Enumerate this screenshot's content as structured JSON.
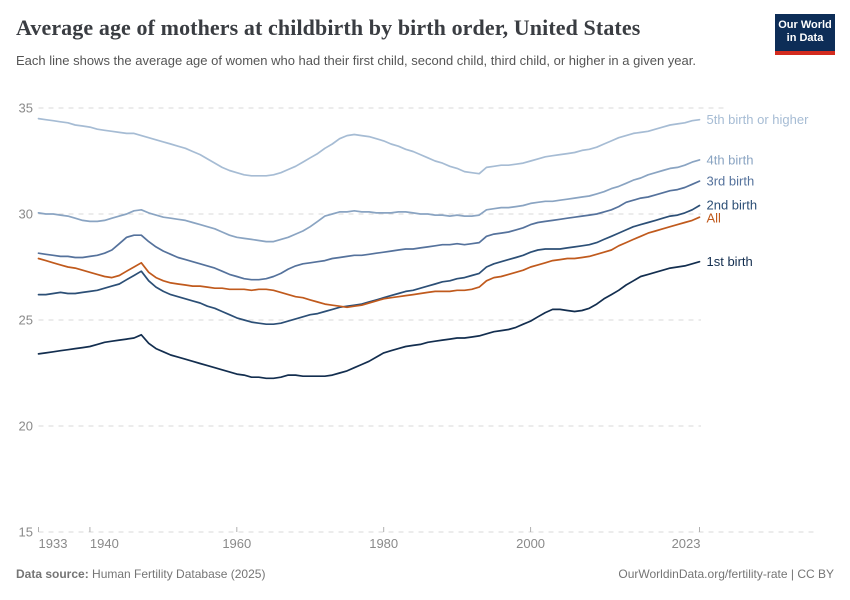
{
  "header": {
    "title": "Average age of mothers at childbirth by birth order, United States",
    "subtitle": "Each line shows the average age of women who had their first child, second child, third child, or higher in a given year.",
    "logo": {
      "line1": "Our World",
      "line2": "in Data",
      "bg_color": "#0d2d57",
      "bar_color": "#d32b1e"
    }
  },
  "footer": {
    "source_label": "Data source:",
    "source_text": " Human Fertility Database (2025)",
    "credit_text": "OurWorldinData.org/fertility-rate | CC BY"
  },
  "style": {
    "title_color": "#3a3d42",
    "subtitle_color": "#555555",
    "footer_color": "#757575",
    "grid_color": "#d9d9d9",
    "axis_text_color": "#8a8a8a",
    "tick_color": "#b0b0b0"
  },
  "chart_data": {
    "type": "line",
    "title": "Average age of mothers at childbirth by birth order, United States",
    "xlabel": "",
    "ylabel": "",
    "xlim": [
      1933,
      2023
    ],
    "ylim": [
      15,
      35
    ],
    "xticks": [
      1933,
      1940,
      1960,
      1980,
      2000,
      2023
    ],
    "yticks": [
      15,
      20,
      25,
      30,
      35
    ],
    "grid": "horizontal-dashed",
    "legend_position": "right-of-line-ends",
    "x": [
      1933,
      1934,
      1935,
      1936,
      1937,
      1938,
      1939,
      1940,
      1941,
      1942,
      1943,
      1944,
      1945,
      1946,
      1947,
      1948,
      1949,
      1950,
      1951,
      1952,
      1953,
      1954,
      1955,
      1956,
      1957,
      1958,
      1959,
      1960,
      1961,
      1962,
      1963,
      1964,
      1965,
      1966,
      1967,
      1968,
      1969,
      1970,
      1971,
      1972,
      1973,
      1974,
      1975,
      1976,
      1977,
      1978,
      1979,
      1980,
      1981,
      1982,
      1983,
      1984,
      1985,
      1986,
      1987,
      1988,
      1989,
      1990,
      1991,
      1992,
      1993,
      1994,
      1995,
      1996,
      1997,
      1998,
      1999,
      2000,
      2001,
      2002,
      2003,
      2004,
      2005,
      2006,
      2007,
      2008,
      2009,
      2010,
      2011,
      2012,
      2013,
      2014,
      2015,
      2016,
      2017,
      2018,
      2019,
      2020,
      2021,
      2022,
      2023
    ],
    "series": [
      {
        "name": "5th birth or higher",
        "color": "#a6bcd4",
        "values": [
          34.5,
          34.45,
          34.4,
          34.35,
          34.3,
          34.2,
          34.15,
          34.1,
          34.0,
          33.95,
          33.9,
          33.85,
          33.8,
          33.8,
          33.7,
          33.6,
          33.5,
          33.4,
          33.3,
          33.2,
          33.1,
          32.95,
          32.8,
          32.6,
          32.4,
          32.2,
          32.05,
          31.95,
          31.85,
          31.8,
          31.8,
          31.8,
          31.85,
          31.95,
          32.1,
          32.25,
          32.45,
          32.65,
          32.85,
          33.1,
          33.3,
          33.55,
          33.7,
          33.75,
          33.7,
          33.65,
          33.55,
          33.45,
          33.3,
          33.2,
          33.05,
          32.95,
          32.8,
          32.65,
          32.5,
          32.4,
          32.25,
          32.15,
          32.0,
          31.95,
          31.9,
          32.2,
          32.25,
          32.3,
          32.3,
          32.35,
          32.4,
          32.5,
          32.6,
          32.7,
          32.75,
          32.8,
          32.85,
          32.9,
          33.0,
          33.05,
          33.15,
          33.3,
          33.45,
          33.6,
          33.7,
          33.8,
          33.85,
          33.9,
          34.0,
          34.1,
          34.2,
          34.25,
          34.3,
          34.4,
          34.45
        ]
      },
      {
        "name": "4th birth",
        "color": "#8aa4c2",
        "values": [
          30.05,
          30.0,
          30.0,
          29.95,
          29.9,
          29.8,
          29.7,
          29.65,
          29.65,
          29.7,
          29.8,
          29.9,
          30.0,
          30.15,
          30.2,
          30.05,
          29.95,
          29.85,
          29.8,
          29.75,
          29.7,
          29.6,
          29.5,
          29.4,
          29.3,
          29.15,
          29.0,
          28.9,
          28.85,
          28.8,
          28.75,
          28.7,
          28.7,
          28.8,
          28.9,
          29.05,
          29.2,
          29.4,
          29.65,
          29.9,
          30.0,
          30.1,
          30.1,
          30.15,
          30.1,
          30.1,
          30.05,
          30.05,
          30.05,
          30.1,
          30.1,
          30.05,
          30.0,
          30.0,
          29.95,
          29.95,
          29.9,
          29.95,
          29.9,
          29.9,
          29.95,
          30.2,
          30.25,
          30.3,
          30.3,
          30.35,
          30.4,
          30.5,
          30.55,
          30.6,
          30.6,
          30.65,
          30.7,
          30.75,
          30.8,
          30.85,
          30.95,
          31.05,
          31.2,
          31.3,
          31.45,
          31.6,
          31.7,
          31.85,
          31.95,
          32.05,
          32.15,
          32.2,
          32.3,
          32.45,
          32.55
        ]
      },
      {
        "name": "3rd birth",
        "color": "#55729c",
        "values": [
          28.15,
          28.1,
          28.05,
          28.0,
          28.0,
          27.95,
          27.95,
          28.0,
          28.05,
          28.15,
          28.3,
          28.6,
          28.9,
          29.0,
          29.0,
          28.7,
          28.45,
          28.25,
          28.1,
          27.95,
          27.85,
          27.75,
          27.65,
          27.55,
          27.45,
          27.3,
          27.15,
          27.05,
          26.95,
          26.9,
          26.9,
          26.95,
          27.05,
          27.2,
          27.4,
          27.55,
          27.65,
          27.7,
          27.75,
          27.8,
          27.9,
          27.95,
          28.0,
          28.05,
          28.05,
          28.1,
          28.15,
          28.2,
          28.25,
          28.3,
          28.35,
          28.35,
          28.4,
          28.45,
          28.5,
          28.55,
          28.55,
          28.6,
          28.55,
          28.6,
          28.65,
          28.95,
          29.05,
          29.1,
          29.15,
          29.25,
          29.35,
          29.5,
          29.6,
          29.65,
          29.7,
          29.75,
          29.8,
          29.85,
          29.9,
          29.95,
          30.0,
          30.1,
          30.2,
          30.35,
          30.55,
          30.65,
          30.75,
          30.8,
          30.9,
          31.0,
          31.1,
          31.15,
          31.25,
          31.4,
          31.55
        ]
      },
      {
        "name": "2nd birth",
        "color": "#2c4f76",
        "values": [
          26.2,
          26.2,
          26.25,
          26.3,
          26.25,
          26.25,
          26.3,
          26.35,
          26.4,
          26.5,
          26.6,
          26.7,
          26.9,
          27.1,
          27.3,
          26.85,
          26.55,
          26.35,
          26.2,
          26.1,
          26.0,
          25.9,
          25.8,
          25.65,
          25.55,
          25.4,
          25.25,
          25.1,
          25.0,
          24.9,
          24.85,
          24.8,
          24.8,
          24.85,
          24.95,
          25.05,
          25.15,
          25.25,
          25.3,
          25.4,
          25.5,
          25.6,
          25.65,
          25.7,
          25.75,
          25.85,
          25.95,
          26.05,
          26.15,
          26.25,
          26.35,
          26.4,
          26.5,
          26.6,
          26.7,
          26.8,
          26.85,
          26.95,
          27.0,
          27.1,
          27.2,
          27.5,
          27.65,
          27.75,
          27.85,
          27.95,
          28.05,
          28.2,
          28.3,
          28.35,
          28.35,
          28.35,
          28.4,
          28.45,
          28.5,
          28.55,
          28.65,
          28.8,
          28.95,
          29.1,
          29.25,
          29.4,
          29.5,
          29.6,
          29.7,
          29.8,
          29.9,
          29.95,
          30.05,
          30.2,
          30.4
        ]
      },
      {
        "name": "All",
        "color": "#c05a1d",
        "values": [
          27.9,
          27.8,
          27.7,
          27.6,
          27.5,
          27.45,
          27.35,
          27.25,
          27.15,
          27.05,
          27.0,
          27.1,
          27.3,
          27.5,
          27.7,
          27.25,
          27.0,
          26.85,
          26.75,
          26.7,
          26.65,
          26.6,
          26.6,
          26.55,
          26.5,
          26.5,
          26.45,
          26.45,
          26.45,
          26.4,
          26.45,
          26.45,
          26.4,
          26.3,
          26.2,
          26.1,
          26.05,
          25.95,
          25.85,
          25.75,
          25.7,
          25.65,
          25.6,
          25.65,
          25.7,
          25.8,
          25.9,
          26.0,
          26.05,
          26.1,
          26.15,
          26.2,
          26.25,
          26.3,
          26.35,
          26.35,
          26.35,
          26.4,
          26.4,
          26.45,
          26.55,
          26.85,
          27.0,
          27.05,
          27.15,
          27.25,
          27.35,
          27.5,
          27.6,
          27.7,
          27.8,
          27.85,
          27.9,
          27.9,
          27.95,
          28.0,
          28.1,
          28.2,
          28.3,
          28.5,
          28.65,
          28.8,
          28.95,
          29.1,
          29.2,
          29.3,
          29.4,
          29.5,
          29.6,
          29.7,
          29.85
        ]
      },
      {
        "name": "1st birth",
        "color": "#132e4f",
        "values": [
          23.4,
          23.45,
          23.5,
          23.55,
          23.6,
          23.65,
          23.7,
          23.75,
          23.85,
          23.95,
          24.0,
          24.05,
          24.1,
          24.15,
          24.3,
          23.9,
          23.65,
          23.5,
          23.35,
          23.25,
          23.15,
          23.05,
          22.95,
          22.85,
          22.75,
          22.65,
          22.55,
          22.45,
          22.4,
          22.3,
          22.3,
          22.25,
          22.25,
          22.3,
          22.4,
          22.4,
          22.35,
          22.35,
          22.35,
          22.35,
          22.4,
          22.5,
          22.6,
          22.75,
          22.9,
          23.05,
          23.25,
          23.45,
          23.55,
          23.65,
          23.75,
          23.8,
          23.85,
          23.95,
          24.0,
          24.05,
          24.1,
          24.15,
          24.15,
          24.2,
          24.25,
          24.35,
          24.45,
          24.5,
          24.55,
          24.65,
          24.8,
          24.95,
          25.15,
          25.35,
          25.5,
          25.5,
          25.45,
          25.4,
          25.45,
          25.55,
          25.75,
          26.0,
          26.2,
          26.4,
          26.65,
          26.85,
          27.05,
          27.15,
          27.25,
          27.35,
          27.45,
          27.5,
          27.55,
          27.65,
          27.75
        ]
      }
    ]
  }
}
